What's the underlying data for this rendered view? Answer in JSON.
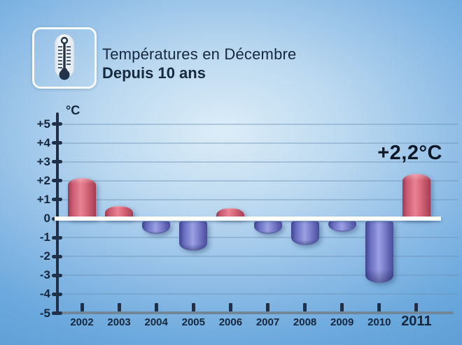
{
  "header": {
    "title": "Températures en Décembre",
    "subtitle": "Depuis 10 ans",
    "icon": "thermometer-icon"
  },
  "chart_data": {
    "type": "bar",
    "title": "Températures en Décembre",
    "subtitle": "Depuis 10 ans",
    "unit_label": "°C",
    "categories": [
      "2002",
      "2003",
      "2004",
      "2005",
      "2006",
      "2007",
      "2008",
      "2009",
      "2010",
      "2011"
    ],
    "values": [
      2.0,
      0.5,
      -0.8,
      -1.7,
      0.4,
      -0.8,
      -1.4,
      -0.7,
      -3.4,
      2.2
    ],
    "ylim": [
      -5,
      5
    ],
    "y_ticks": [
      {
        "label": "+5",
        "value": 5
      },
      {
        "label": "+4",
        "value": 4
      },
      {
        "label": "+3",
        "value": 3
      },
      {
        "label": "+2",
        "value": 2
      },
      {
        "label": "+1",
        "value": 1
      },
      {
        "label": "0",
        "value": 0
      },
      {
        "label": "-1",
        "value": -1
      },
      {
        "label": "-2",
        "value": -2
      },
      {
        "label": "-3",
        "value": -3
      },
      {
        "label": "-4",
        "value": -4
      },
      {
        "label": "-5",
        "value": -5
      }
    ],
    "grid": true,
    "legend": null,
    "positive_color": "#d96075",
    "negative_color": "#7e82cf",
    "highlight_category": "2011",
    "annotation": {
      "text": "+2,2°C",
      "target_year": "2011"
    }
  },
  "colors": {
    "background_center": "#dcedf8",
    "background_edge": "#5b9cd2",
    "text_navy": "#14273d",
    "axis": "#1f3048",
    "zero_line": "#ffffff",
    "baseline": "#6f8799",
    "bar_positive": "#d96075",
    "bar_negative": "#7e82cf"
  }
}
